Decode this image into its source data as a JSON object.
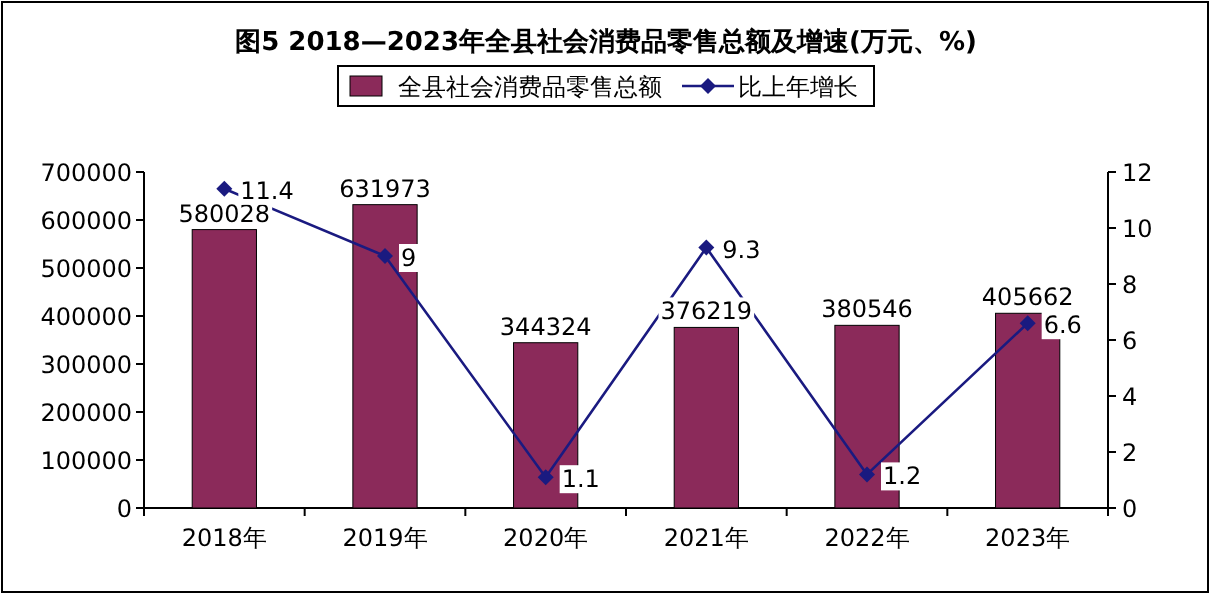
{
  "chart_data": {
    "type": "bar",
    "title": "图5  2018—2023年全县社会消费品零售总额及增速(万元、%)",
    "categories": [
      "2018年",
      "2019年",
      "2020年",
      "2021年",
      "2022年",
      "2023年"
    ],
    "series": [
      {
        "name": "全县社会消费品零售总额",
        "color": "#8b2a5a",
        "values": [
          580028,
          631973,
          344324,
          376219,
          380546,
          405662
        ]
      },
      {
        "name": "比上年增长",
        "type": "line",
        "axis": "y2",
        "color": "#1a1a80",
        "values": [
          11.4,
          9,
          1.1,
          9.3,
          1.2,
          6.6
        ]
      }
    ],
    "ylim": [
      0,
      700000
    ],
    "yticks": [
      0,
      100000,
      200000,
      300000,
      400000,
      500000,
      600000,
      700000
    ],
    "y2lim": [
      0,
      12
    ],
    "y2ticks": [
      0,
      2,
      4,
      6,
      8,
      10,
      12
    ],
    "data_labels": true,
    "legend": "top",
    "marker": "diamond",
    "grid": false
  }
}
